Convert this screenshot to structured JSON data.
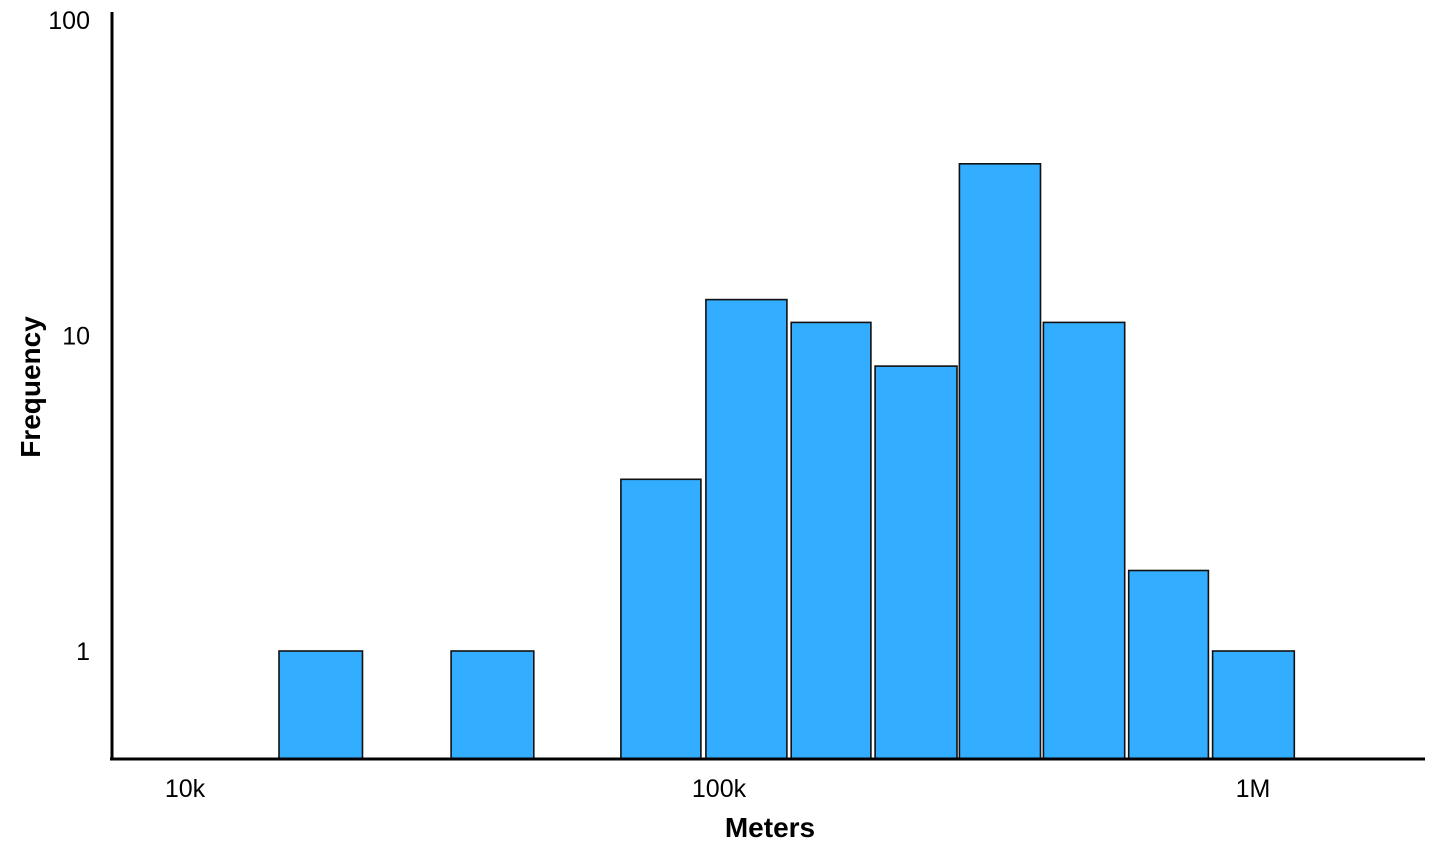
{
  "chart_data": {
    "type": "bar",
    "xlabel": "Meters",
    "ylabel": "Frequency",
    "x_scale": "log",
    "y_scale": "log",
    "x_ticks": [
      {
        "value": 10000,
        "label": "10k"
      },
      {
        "value": 100000,
        "label": "100k"
      },
      {
        "value": 1000000,
        "label": "1M"
      }
    ],
    "y_ticks": [
      {
        "value": 1,
        "label": "1"
      },
      {
        "value": 10,
        "label": "10"
      },
      {
        "value": 100,
        "label": "100"
      }
    ],
    "bins": [
      {
        "x0": 15000,
        "x1": 21500,
        "count": 1
      },
      {
        "x0": 31500,
        "x1": 45000,
        "count": 1
      },
      {
        "x0": 65500,
        "x1": 92500,
        "count": 3.5
      },
      {
        "x0": 94500,
        "x1": 134000,
        "count": 13
      },
      {
        "x0": 136500,
        "x1": 192500,
        "count": 11
      },
      {
        "x0": 196000,
        "x1": 279000,
        "count": 8
      },
      {
        "x0": 282000,
        "x1": 400000,
        "count": 35
      },
      {
        "x0": 405000,
        "x1": 575000,
        "count": 11
      },
      {
        "x0": 585000,
        "x1": 825000,
        "count": 1.8
      },
      {
        "x0": 840000,
        "x1": 1195000,
        "count": 1
      }
    ],
    "grid": false,
    "legend": "none"
  }
}
